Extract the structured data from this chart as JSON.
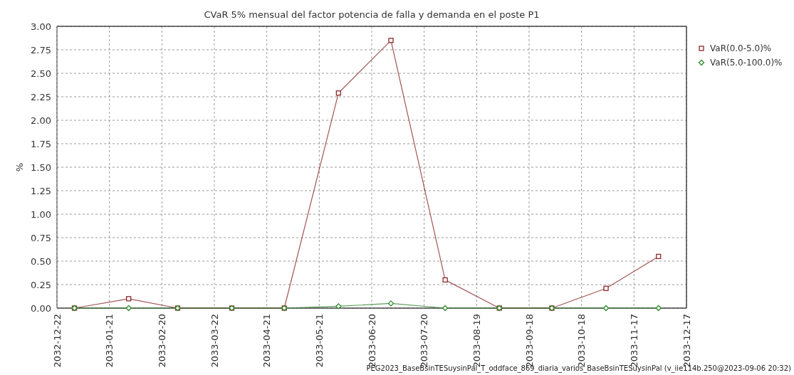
{
  "chart_data": {
    "type": "line",
    "title": "CVaR 5% mensual del factor potencia de falla y demanda en el poste P1",
    "ylabel": "%",
    "x": [
      "2033-01-01",
      "2033-02-01",
      "2033-03-01",
      "2033-04-01",
      "2033-05-01",
      "2033-06-01",
      "2033-07-01",
      "2033-08-01",
      "2033-09-01",
      "2033-10-01",
      "2033-11-01",
      "2033-12-01"
    ],
    "series": [
      {
        "name": "VaR(0.0-5.0)%",
        "color": "#8b2a2a",
        "marker": "square",
        "values": [
          0,
          0.1,
          0,
          0,
          0,
          2.29,
          2.85,
          0.3,
          0,
          0,
          0.21,
          0.55
        ]
      },
      {
        "name": "VaR(5.0-100.0)%",
        "color": "#2e8b2e",
        "marker": "diamond",
        "values": [
          0,
          0,
          0,
          0,
          0,
          0.02,
          0.05,
          0,
          0,
          0,
          0,
          0
        ]
      }
    ],
    "xlim": [
      "2032-12-22",
      "2033-12-17"
    ],
    "xticks": [
      "2032-12-22",
      "2033-01-21",
      "2033-02-20",
      "2033-03-22",
      "2033-04-21",
      "2033-05-21",
      "2033-06-20",
      "2033-07-20",
      "2033-08-19",
      "2033-09-18",
      "2033-10-18",
      "2033-11-17",
      "2033-12-17"
    ],
    "ylim": [
      0,
      3
    ],
    "yticks": [
      {
        "value": 0,
        "label": "0.00"
      },
      {
        "value": 0.25,
        "label": "0.25"
      },
      {
        "value": 0.5,
        "label": "0.50"
      },
      {
        "value": 0.75,
        "label": "0.75"
      },
      {
        "value": 1,
        "label": "1.00"
      },
      {
        "value": 1.25,
        "label": "1.25"
      },
      {
        "value": 1.5,
        "label": "1.50"
      },
      {
        "value": 1.75,
        "label": "1.75"
      },
      {
        "value": 2,
        "label": "2.00"
      },
      {
        "value": 2.25,
        "label": "2.25"
      },
      {
        "value": 2.5,
        "label": "2.50"
      },
      {
        "value": 2.75,
        "label": "2.75"
      },
      {
        "value": 3,
        "label": "3.00"
      }
    ],
    "grid": true,
    "legend": "top right",
    "annotations": [
      "PEG2023_BaseBsinTESuysinPal_T_oddface_869_diaria_varios_BaseBsinTESuysinPal (v_iie114b.250@2023-09-06 20:32)"
    ]
  }
}
